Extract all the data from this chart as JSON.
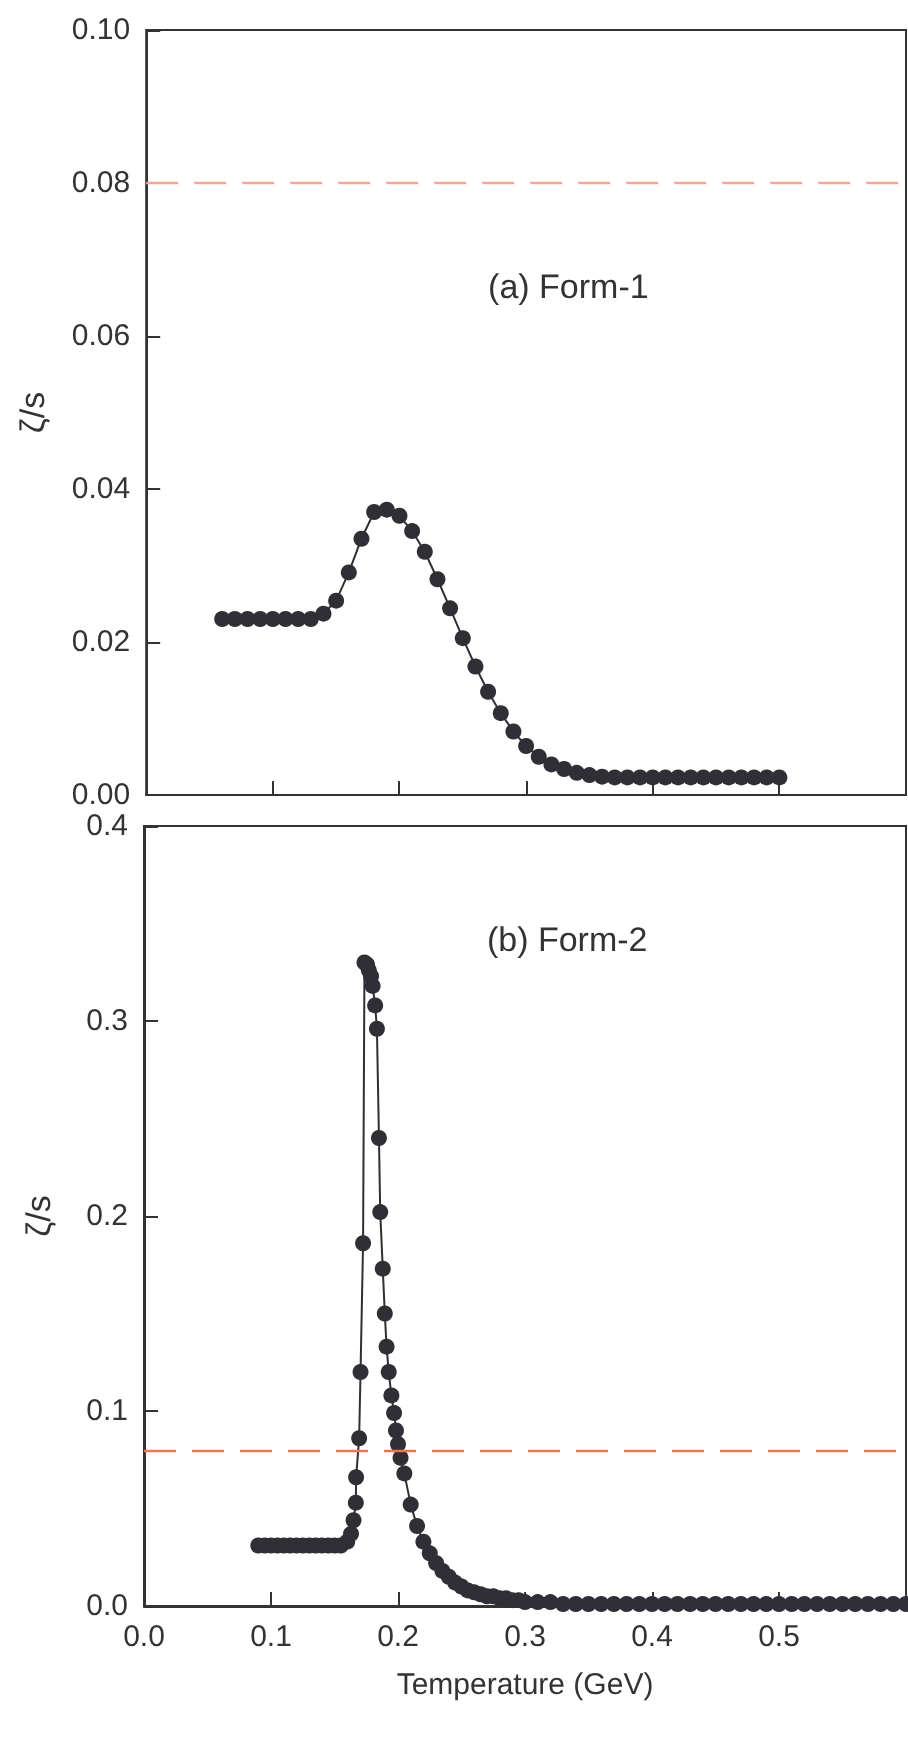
{
  "chart_data": [
    {
      "type": "line",
      "ylabel": "ζ/s",
      "annotations": [
        "(a) Form-1"
      ],
      "marker": "circle",
      "line_style": "solid",
      "tick_labels": "y",
      "grid": false,
      "xlim": [
        0,
        0.6
      ],
      "xticks": [
        {
          "value": 0,
          "label": null
        },
        {
          "value": 0.1,
          "label": null
        },
        {
          "value": 0.2,
          "label": null
        },
        {
          "value": 0.3,
          "label": null
        },
        {
          "value": 0.4,
          "label": null
        },
        {
          "value": 0.5,
          "label": null
        }
      ],
      "ylim": [
        0,
        0.1
      ],
      "yticks": [
        {
          "value": 0,
          "label": "0.00"
        },
        {
          "value": 0.02,
          "label": "0.02"
        },
        {
          "value": 0.04,
          "label": "0.04"
        },
        {
          "value": 0.06,
          "label": "0.06"
        },
        {
          "value": 0.08,
          "label": "0.08"
        },
        {
          "value": 0.1,
          "label": "0.10"
        }
      ],
      "ref_lines": [
        {
          "axis": "y",
          "value": 0.08,
          "label": null,
          "color": "#f4a88e",
          "line_style": "dashed"
        }
      ],
      "series": [
        {
          "color": "#2f2f35",
          "x": [
            0.06,
            0.07,
            0.08,
            0.09,
            0.1,
            0.11,
            0.12,
            0.13,
            0.14,
            0.15,
            0.16,
            0.17,
            0.18,
            0.19,
            0.2,
            0.21,
            0.22,
            0.23,
            0.24,
            0.25,
            0.26,
            0.27,
            0.28,
            0.29,
            0.3,
            0.31,
            0.32,
            0.33,
            0.34,
            0.35,
            0.36,
            0.37,
            0.38,
            0.39,
            0.4,
            0.41,
            0.42,
            0.43,
            0.44,
            0.45,
            0.46,
            0.47,
            0.48,
            0.49,
            0.5
          ],
          "values": [
            0.023,
            0.023,
            0.023,
            0.023,
            0.023,
            0.023,
            0.023,
            0.023,
            0.0237,
            0.0254,
            0.0291,
            0.0335,
            0.037,
            0.0373,
            0.0365,
            0.0345,
            0.0318,
            0.0282,
            0.0244,
            0.0205,
            0.0168,
            0.0135,
            0.0107,
            0.0083,
            0.0064,
            0.005,
            0.004,
            0.0034,
            0.0029,
            0.0026,
            0.0024,
            0.0023,
            0.0023,
            0.0023,
            0.0023,
            0.0023,
            0.0023,
            0.0023,
            0.0023,
            0.0023,
            0.0023,
            0.0023,
            0.0023,
            0.0023,
            0.0023
          ]
        }
      ]
    },
    {
      "type": "line",
      "ylabel": "ζ/s",
      "xlabel": "Temperature (GeV)",
      "annotations": [
        "(b) Form-2"
      ],
      "marker": "circle",
      "line_style": "solid",
      "grid": false,
      "xlim": [
        0,
        0.6
      ],
      "xticks": [
        {
          "value": 0,
          "label": "0.0"
        },
        0.1,
        0.2,
        0.3,
        0.4,
        0.5
      ],
      "ylim": [
        0,
        0.4
      ],
      "yticks": [
        {
          "value": 0,
          "label": "0.0"
        },
        0.1,
        0.2,
        0.3,
        0.4
      ],
      "ref_lines": [
        {
          "axis": "y",
          "value": 0.08,
          "label": null,
          "color": "#e8794f",
          "line_style": "dashed"
        }
      ],
      "series": [
        {
          "color": "#2f2f35",
          "x": [
            0.09,
            0.095,
            0.1,
            0.105,
            0.11,
            0.115,
            0.12,
            0.125,
            0.13,
            0.135,
            0.14,
            0.145,
            0.15,
            0.155,
            0.16,
            0.163,
            0.165,
            0.1668,
            0.167,
            0.1694,
            0.1705,
            0.1725,
            0.1736,
            0.1756,
            0.177,
            0.1788,
            0.18,
            0.182,
            0.1834,
            0.185,
            0.186,
            0.188,
            0.1896,
            0.191,
            0.1927,
            0.1948,
            0.1969,
            0.1984,
            0.2,
            0.202,
            0.205,
            0.21,
            0.215,
            0.22,
            0.225,
            0.23,
            0.235,
            0.24,
            0.245,
            0.25,
            0.255,
            0.26,
            0.265,
            0.27,
            0.275,
            0.28,
            0.285,
            0.29,
            0.295,
            0.3,
            0.31,
            0.32,
            0.33,
            0.34,
            0.35,
            0.36,
            0.37,
            0.38,
            0.39,
            0.4,
            0.41,
            0.42,
            0.43,
            0.44,
            0.45,
            0.46,
            0.47,
            0.48,
            0.49,
            0.5,
            0.51,
            0.52,
            0.53,
            0.54,
            0.55,
            0.56,
            0.57,
            0.58,
            0.59,
            0.6
          ],
          "values": [
            0.031,
            0.031,
            0.031,
            0.031,
            0.031,
            0.031,
            0.031,
            0.031,
            0.031,
            0.031,
            0.031,
            0.031,
            0.031,
            0.031,
            0.033,
            0.037,
            0.044,
            0.053,
            0.066,
            0.086,
            0.12,
            0.186,
            0.33,
            0.329,
            0.326,
            0.323,
            0.318,
            0.308,
            0.296,
            0.24,
            0.202,
            0.173,
            0.15,
            0.133,
            0.12,
            0.108,
            0.099,
            0.09,
            0.083,
            0.076,
            0.068,
            0.052,
            0.041,
            0.033,
            0.027,
            0.022,
            0.018,
            0.015,
            0.012,
            0.01,
            0.008,
            0.007,
            0.006,
            0.005,
            0.005,
            0.004,
            0.004,
            0.003,
            0.003,
            0.002,
            0.002,
            0.002,
            0.001,
            0.001,
            0.001,
            0.001,
            0.001,
            0.001,
            0.001,
            0.001,
            0.001,
            0.001,
            0.001,
            0.001,
            0.001,
            0.001,
            0.001,
            0.001,
            0.001,
            0.001,
            0.001,
            0.001,
            0.001,
            0.001,
            0.001,
            0.001,
            0.001,
            0.001,
            0.001,
            0.001
          ]
        }
      ]
    }
  ]
}
